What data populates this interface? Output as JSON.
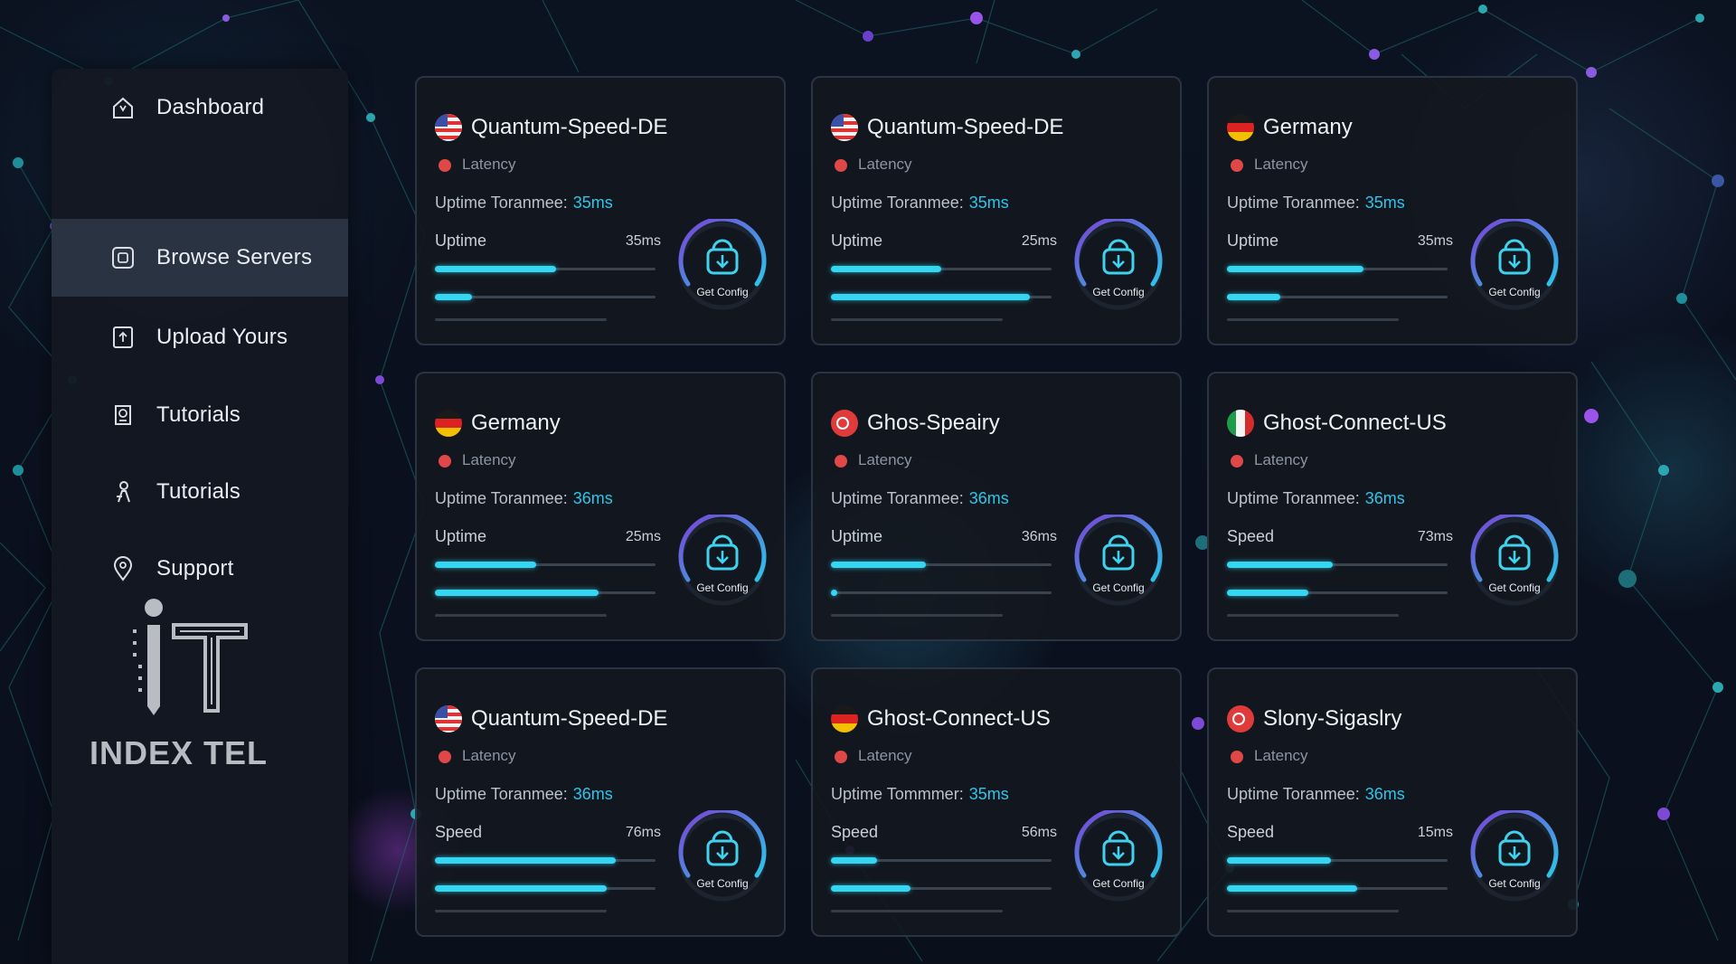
{
  "sidebar": {
    "items": [
      {
        "label": "Dashboard",
        "icon": "home-icon",
        "active": false
      },
      {
        "label": "Browse Servers",
        "icon": "server-icon",
        "active": true
      },
      {
        "label": "Upload Yours",
        "icon": "upload-icon",
        "active": false
      },
      {
        "label": "Tutorials",
        "icon": "book-icon",
        "active": false
      },
      {
        "label": "Tutorials",
        "icon": "person-icon",
        "active": false
      },
      {
        "label": "Support",
        "icon": "location-pin-icon",
        "active": false
      }
    ],
    "brand": "INDEX TEL"
  },
  "cards": [
    {
      "name": "Quantum-Speed-DE",
      "flag": "us",
      "latency": "Latency",
      "uptime_label": "Uptime Toranmee:",
      "uptime_ms": "35ms",
      "metric_label": "Uptime",
      "metric_value": "35ms",
      "bar1": 0.55,
      "bar2": 0.17,
      "button": "Get Config"
    },
    {
      "name": "Quantum-Speed-DE",
      "flag": "us",
      "latency": "Latency",
      "uptime_label": "Uptime Toranmee:",
      "uptime_ms": "35ms",
      "metric_label": "Uptime",
      "metric_value": "25ms",
      "bar1": 0.5,
      "bar2": 0.9,
      "button": "Get Config"
    },
    {
      "name": "Germany",
      "flag": "de",
      "latency": "Latency",
      "uptime_label": "Uptime Toranmee:",
      "uptime_ms": "35ms",
      "metric_label": "Uptime",
      "metric_value": "35ms",
      "bar1": 0.62,
      "bar2": 0.24,
      "button": "Get Config"
    },
    {
      "name": "Germany",
      "flag": "de",
      "latency": "Latency",
      "uptime_label": "Uptime Toranmee:",
      "uptime_ms": "36ms",
      "metric_label": "Uptime",
      "metric_value": "25ms",
      "bar1": 0.46,
      "bar2": 0.74,
      "button": "Get Config"
    },
    {
      "name": "Ghos-Speairy",
      "flag": "sg",
      "latency": "Latency",
      "uptime_label": "Uptime Toranmee:",
      "uptime_ms": "36ms",
      "metric_label": "Uptime",
      "metric_value": "36ms",
      "bar1": 0.43,
      "bar2": 0.03,
      "button": "Get Config"
    },
    {
      "name": "Ghost-Connect-US",
      "flag": "it",
      "latency": "Latency",
      "uptime_label": "Uptime Toranmee:",
      "uptime_ms": "36ms",
      "metric_label": "Speed",
      "metric_value": "73ms",
      "bar1": 0.48,
      "bar2": 0.37,
      "button": "Get Config"
    },
    {
      "name": "Quantum-Speed-DE",
      "flag": "us",
      "latency": "Latency",
      "uptime_label": "Uptime Toranmee:",
      "uptime_ms": "36ms",
      "metric_label": "Speed",
      "metric_value": "76ms",
      "bar1": 0.82,
      "bar2": 0.78,
      "button": "Get Config"
    },
    {
      "name": "Ghost-Connect-US",
      "flag": "de",
      "latency": "Latency",
      "uptime_label": "Uptime Tommmer:",
      "uptime_ms": "35ms",
      "metric_label": "Speed",
      "metric_value": "56ms",
      "bar1": 0.21,
      "bar2": 0.36,
      "button": "Get Config"
    },
    {
      "name": "Slony-Sigaslry",
      "flag": "sg",
      "latency": "Latency",
      "uptime_label": "Uptime Toranmee:",
      "uptime_ms": "36ms",
      "metric_label": "Speed",
      "metric_value": "15ms",
      "bar1": 0.47,
      "bar2": 0.59,
      "button": "Get Config"
    }
  ],
  "colors": {
    "accent": "#35d6f2",
    "ring_start": "#7b3fd6",
    "ring_end": "#2ec5e8",
    "status_red": "#e04848",
    "active_nav": "#2a3341"
  }
}
